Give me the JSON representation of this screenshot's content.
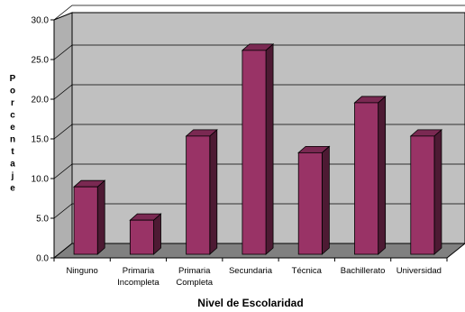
{
  "chart_data": {
    "type": "bar",
    "categories": [
      "Ninguno",
      "Primaria\nIncompleta",
      "Primaria\nCompleta",
      "Secundaria",
      "Técnica",
      "Bachillerato",
      "Universidad"
    ],
    "values": [
      8.5,
      4.3,
      14.9,
      25.7,
      12.8,
      19.1,
      14.9
    ],
    "xlabel": "Nivel de Escolaridad",
    "ylabel": "Porcentaje",
    "ylim": [
      0,
      30
    ],
    "yticks": [
      "0.0",
      "5.0",
      "10.0",
      "15.0",
      "20.0",
      "25.0",
      "30.0"
    ],
    "grid": true,
    "style": "3d",
    "bar_color": "#993366",
    "wall_color": "#c0c0c0",
    "floor_color": "#808080"
  }
}
